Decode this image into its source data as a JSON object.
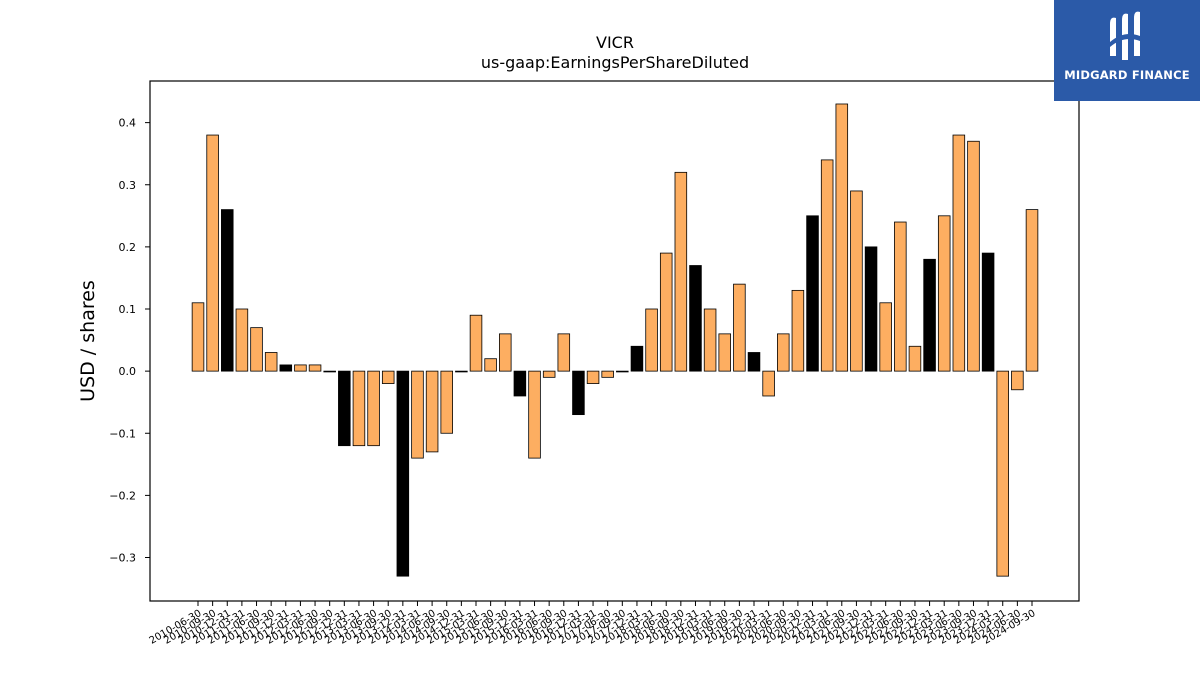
{
  "brand": {
    "name": "MIDGARD FINANCE",
    "logo_icon": "midgard-monogram-icon",
    "bg_color": "#2b5aa8"
  },
  "chart_data": {
    "type": "bar",
    "title": "VICR",
    "subtitle": "us-gaap:EarningsPerShareDiluted",
    "xlabel": "",
    "ylabel": "USD / shares",
    "ylim": [
      -0.37,
      0.467
    ],
    "yticks": [
      -0.3,
      -0.2,
      -0.1,
      0.0,
      0.1,
      0.2,
      0.3,
      0.4
    ],
    "grid": false,
    "colors": {
      "quarter": "#fdae61",
      "annual": "#000000",
      "edge": "#000000"
    },
    "categories": [
      "2010-06-30",
      "2010-09-30",
      "2010-12-31",
      "2011-03-31",
      "2011-06-30",
      "2011-09-30",
      "2011-12-31",
      "2012-03-31",
      "2012-06-30",
      "2012-09-30",
      "2012-12-31",
      "2013-03-31",
      "2013-06-30",
      "2013-09-30",
      "2013-12-31",
      "2014-03-31",
      "2014-06-30",
      "2014-09-30",
      "2014-12-31",
      "2015-03-31",
      "2015-06-30",
      "2015-09-30",
      "2015-12-31",
      "2016-03-31",
      "2016-06-30",
      "2016-09-30",
      "2016-12-31",
      "2017-03-31",
      "2017-06-30",
      "2017-09-30",
      "2017-12-31",
      "2018-03-31",
      "2018-06-30",
      "2018-09-30",
      "2018-12-31",
      "2019-03-31",
      "2019-06-30",
      "2019-09-30",
      "2019-12-31",
      "2020-03-31",
      "2020-06-30",
      "2020-09-30",
      "2020-12-31",
      "2021-03-31",
      "2021-06-30",
      "2021-09-30",
      "2021-12-31",
      "2022-03-31",
      "2022-06-30",
      "2022-09-30",
      "2022-12-31",
      "2023-03-31",
      "2023-06-30",
      "2023-09-30",
      "2023-12-31",
      "2024-03-31",
      "2024-06-30",
      "2024-09-30"
    ],
    "values": [
      0.11,
      0.38,
      0.26,
      0.1,
      0.07,
      0.03,
      0.01,
      0.01,
      0.01,
      0.0,
      -0.12,
      -0.12,
      -0.12,
      -0.02,
      -0.33,
      -0.14,
      -0.13,
      -0.1,
      0.0,
      0.09,
      0.02,
      0.06,
      -0.04,
      -0.14,
      -0.01,
      0.06,
      -0.07,
      -0.02,
      -0.01,
      0.0,
      0.04,
      0.1,
      0.19,
      0.32,
      0.17,
      0.1,
      0.06,
      0.14,
      0.03,
      -0.04,
      0.06,
      0.13,
      0.25,
      0.34,
      0.43,
      0.29,
      0.2,
      0.11,
      0.24,
      0.04,
      0.18,
      0.25,
      0.38,
      0.37,
      0.19,
      -0.33,
      -0.03,
      0.26
    ],
    "annual": [
      false,
      false,
      true,
      false,
      false,
      false,
      true,
      false,
      false,
      false,
      true,
      false,
      false,
      false,
      true,
      false,
      false,
      false,
      true,
      false,
      false,
      false,
      true,
      false,
      false,
      false,
      true,
      false,
      false,
      false,
      true,
      false,
      false,
      false,
      true,
      false,
      false,
      false,
      true,
      false,
      false,
      false,
      true,
      false,
      false,
      false,
      true,
      false,
      false,
      false,
      true,
      false,
      false,
      false,
      true,
      false,
      false,
      false
    ]
  }
}
